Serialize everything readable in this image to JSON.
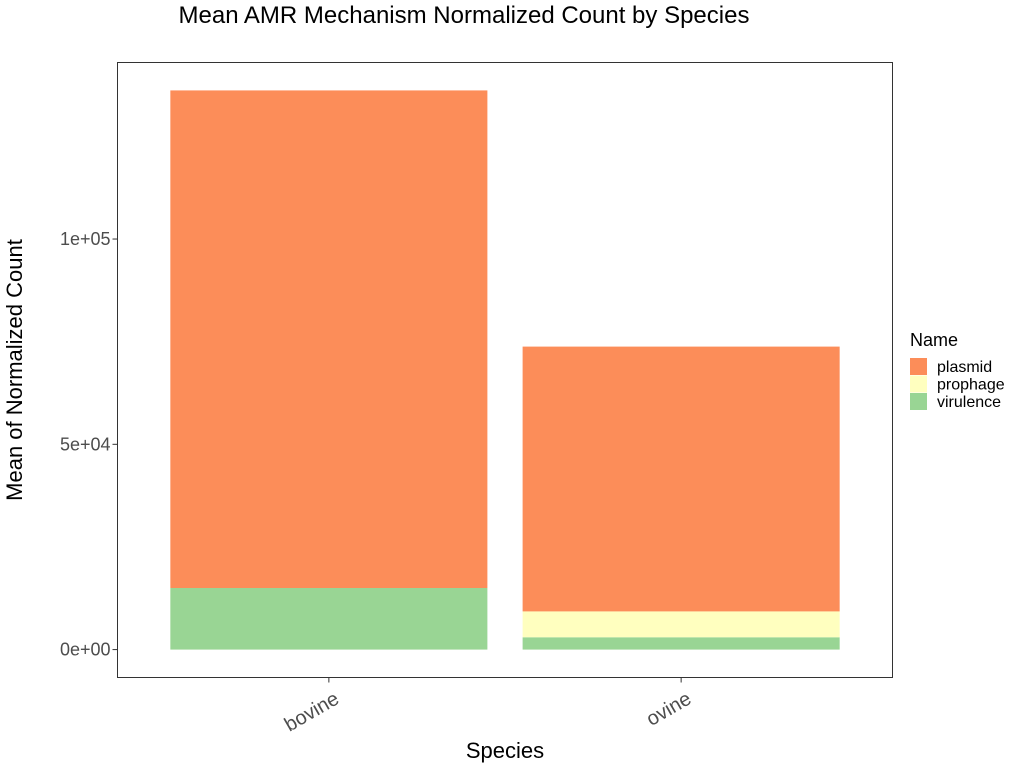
{
  "chart_data": {
    "type": "bar",
    "stacked": true,
    "title": "Mean AMR Mechanism Normalized Count by Species",
    "xlabel": "Species",
    "ylabel": "Mean of Normalized Count",
    "categories": [
      "bovine",
      "ovine"
    ],
    "series": [
      {
        "name": "virulence",
        "color": "#99D594",
        "values": [
          15000,
          3000
        ]
      },
      {
        "name": "prophage",
        "color": "#FFFFBF",
        "values": [
          0,
          6300
        ]
      },
      {
        "name": "plasmid",
        "color": "#FC8D59",
        "values": [
          121200,
          64500
        ]
      }
    ],
    "yticks": [
      0,
      50000,
      100000
    ],
    "ytick_labels": [
      "0e+00",
      "5e+04",
      "1e+05"
    ],
    "ylim": [
      -6800,
      143000
    ],
    "grid": false,
    "legend": {
      "title": "Name",
      "position": "right",
      "order": [
        "plasmid",
        "prophage",
        "virulence"
      ]
    }
  }
}
